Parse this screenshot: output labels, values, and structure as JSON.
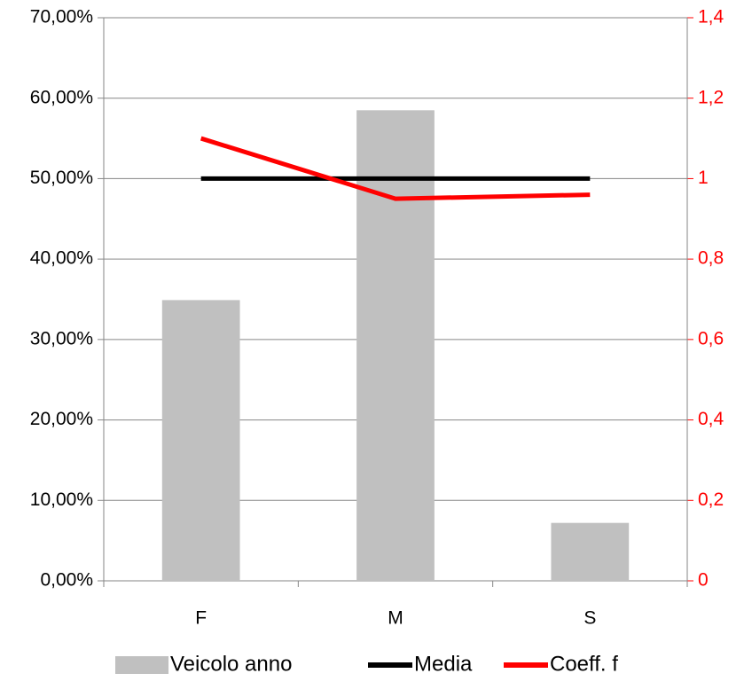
{
  "chart_data": {
    "type": "bar_line",
    "categories": [
      "F",
      "M",
      "S"
    ],
    "series": [
      {
        "name": "Veicolo anno",
        "type": "bar",
        "color": "#c0c0c0",
        "axis": "y",
        "values": [
          34.9,
          58.5,
          7.2
        ]
      },
      {
        "name": "Media",
        "type": "line",
        "color": "#000000",
        "axis": "y2",
        "values": [
          1,
          1,
          1
        ]
      },
      {
        "name": "Coeff. f",
        "type": "line",
        "color": "#ff0000",
        "axis": "y2",
        "values": [
          1.1,
          0.95,
          0.96
        ]
      }
    ],
    "ylim": [
      0,
      70
    ],
    "yticks": [
      {
        "value": 0,
        "label": "0,00%"
      },
      {
        "value": 10,
        "label": "10,00%"
      },
      {
        "value": 20,
        "label": "20,00%"
      },
      {
        "value": 30,
        "label": "30,00%"
      },
      {
        "value": 40,
        "label": "40,00%"
      },
      {
        "value": 50,
        "label": "50,00%"
      },
      {
        "value": 60,
        "label": "60,00%"
      },
      {
        "value": 70,
        "label": "70,00%"
      }
    ],
    "y2lim": [
      0,
      1.4
    ],
    "y2ticks": [
      0,
      {
        "value": 0.2,
        "label": "0,2"
      },
      {
        "value": 0.4,
        "label": "0,4"
      },
      {
        "value": 0.6,
        "label": "0,6"
      },
      {
        "value": 0.8,
        "label": "0,8"
      },
      1,
      {
        "value": 1.2,
        "label": "1,2"
      },
      {
        "value": 1.4,
        "label": "1,4"
      }
    ],
    "y2_color": "#ff0000",
    "grid": true,
    "legend": "bottom"
  }
}
